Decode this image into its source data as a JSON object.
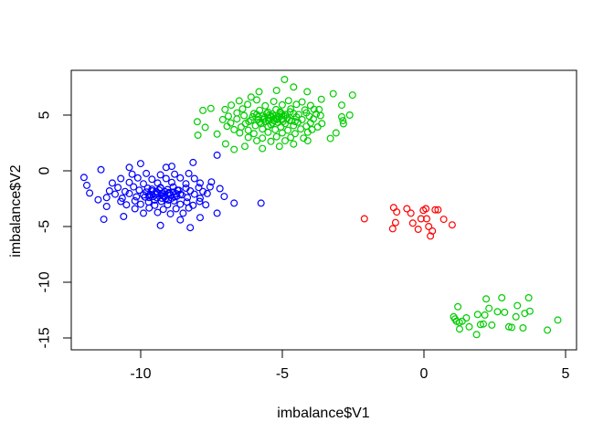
{
  "figure": {
    "background": "#ffffff",
    "title": ""
  },
  "chart_data": {
    "type": "scatter",
    "title": "",
    "xlabel": "imbalance$V1",
    "ylabel": "imbalance$V2",
    "xlim": [
      -12.45,
      5.39
    ],
    "ylim": [
      -16.07,
      9.02
    ],
    "xticks": [
      -10,
      -5,
      0,
      5
    ],
    "yticks": [
      5,
      0,
      -5,
      -10,
      -15
    ],
    "grid": false,
    "legend": "none",
    "axis_color": "#000000",
    "marker": {
      "shape": "open-circle",
      "radius_px": 3.4,
      "stroke_px": 1.2
    },
    "series": [
      {
        "name": "cluster-top-green",
        "color": "#00CD00",
        "points": [
          [
            -4.92,
            8.2
          ],
          [
            -4.6,
            7.52
          ],
          [
            -2.52,
            6.8
          ],
          [
            -3.2,
            6.92
          ],
          [
            -5.82,
            7.1
          ],
          [
            -6.1,
            6.62
          ],
          [
            -5.2,
            7.22
          ],
          [
            -4.12,
            7.1
          ],
          [
            -3.62,
            6.42
          ],
          [
            -2.9,
            5.9
          ],
          [
            -3.88,
            5.52
          ],
          [
            -2.62,
            5.0
          ],
          [
            -2.9,
            4.85
          ],
          [
            -2.86,
            4.5
          ],
          [
            -2.84,
            4.22
          ],
          [
            -3.1,
            3.4
          ],
          [
            -3.3,
            2.9
          ],
          [
            -7.52,
            5.6
          ],
          [
            -7.8,
            5.42
          ],
          [
            -8.0,
            4.4
          ],
          [
            -7.72,
            3.9
          ],
          [
            -7.3,
            3.3
          ],
          [
            -7.0,
            2.42
          ],
          [
            -6.7,
            1.92
          ],
          [
            -6.32,
            2.2
          ],
          [
            -5.7,
            2.0
          ],
          [
            -5.1,
            2.2
          ],
          [
            -4.6,
            2.4
          ],
          [
            -4.1,
            2.7
          ],
          [
            -7.98,
            3.2
          ],
          [
            -6.52,
            6.28
          ],
          [
            -5.9,
            6.36
          ],
          [
            -5.3,
            6.22
          ],
          [
            -4.78,
            6.3
          ],
          [
            -4.3,
            6.18
          ],
          [
            -6.8,
            5.9
          ],
          [
            -6.22,
            5.96
          ],
          [
            -5.6,
            5.84
          ],
          [
            -5.0,
            5.92
          ],
          [
            -4.5,
            5.96
          ],
          [
            -4.0,
            5.86
          ],
          [
            -7.02,
            5.5
          ],
          [
            -6.4,
            5.56
          ],
          [
            -5.8,
            5.44
          ],
          [
            -5.22,
            5.5
          ],
          [
            -4.7,
            5.56
          ],
          [
            -4.2,
            5.46
          ],
          [
            -3.7,
            5.5
          ],
          [
            -6.6,
            5.2
          ],
          [
            -6.0,
            5.14
          ],
          [
            -5.5,
            5.26
          ],
          [
            -5.05,
            5.2
          ],
          [
            -4.6,
            5.14
          ],
          [
            -4.15,
            5.2
          ],
          [
            -3.8,
            5.1
          ],
          [
            -6.9,
            4.9
          ],
          [
            -6.35,
            4.96
          ],
          [
            -5.85,
            4.84
          ],
          [
            -5.4,
            4.9
          ],
          [
            -4.95,
            4.96
          ],
          [
            -4.5,
            4.84
          ],
          [
            -4.05,
            4.9
          ],
          [
            -3.65,
            4.96
          ],
          [
            -7.1,
            4.6
          ],
          [
            -6.6,
            4.66
          ],
          [
            -6.1,
            4.54
          ],
          [
            -5.65,
            4.6
          ],
          [
            -5.2,
            4.66
          ],
          [
            -4.75,
            4.54
          ],
          [
            -4.3,
            4.6
          ],
          [
            -3.9,
            4.66
          ],
          [
            -6.82,
            4.3
          ],
          [
            -6.3,
            4.24
          ],
          [
            -5.8,
            4.36
          ],
          [
            -5.35,
            4.3
          ],
          [
            -4.9,
            4.24
          ],
          [
            -4.45,
            4.36
          ],
          [
            -4.0,
            4.3
          ],
          [
            -3.6,
            4.24
          ],
          [
            -6.95,
            4.0
          ],
          [
            -6.45,
            3.94
          ],
          [
            -5.95,
            4.06
          ],
          [
            -5.5,
            4.0
          ],
          [
            -5.05,
            3.94
          ],
          [
            -4.6,
            4.06
          ],
          [
            -4.15,
            4.0
          ],
          [
            -3.75,
            3.94
          ],
          [
            -6.7,
            3.7
          ],
          [
            -6.2,
            3.64
          ],
          [
            -5.7,
            3.76
          ],
          [
            -5.25,
            3.7
          ],
          [
            -4.8,
            3.64
          ],
          [
            -4.35,
            3.76
          ],
          [
            -3.95,
            3.7
          ],
          [
            -6.5,
            3.4
          ],
          [
            -6.0,
            3.34
          ],
          [
            -5.5,
            3.46
          ],
          [
            -5.0,
            3.4
          ],
          [
            -4.55,
            3.34
          ],
          [
            -4.1,
            3.46
          ],
          [
            -6.2,
            3.0
          ],
          [
            -5.7,
            2.94
          ],
          [
            -5.2,
            3.06
          ],
          [
            -4.7,
            3.0
          ],
          [
            -4.25,
            2.94
          ],
          [
            -5.9,
            2.7
          ],
          [
            -5.4,
            2.64
          ],
          [
            -4.9,
            2.7
          ],
          [
            -5.5,
            4.75
          ],
          [
            -5.3,
            4.5
          ],
          [
            -5.1,
            4.85
          ],
          [
            -5.6,
            4.4
          ],
          [
            -5.0,
            4.6
          ],
          [
            -5.25,
            4.7
          ],
          [
            -5.45,
            5.0
          ],
          [
            -5.15,
            4.35
          ],
          [
            -4.88,
            5.05
          ],
          [
            -5.7,
            4.9
          ],
          [
            -5.35,
            5.1
          ],
          [
            -5.08,
            5.3
          ],
          [
            -5.85,
            4.6
          ],
          [
            -5.62,
            4.78
          ],
          [
            -5.48,
            4.52
          ],
          [
            -5.3,
            4.92
          ],
          [
            -5.18,
            4.6
          ],
          [
            -4.98,
            4.42
          ],
          [
            -4.82,
            4.72
          ],
          [
            -4.68,
            4.48
          ],
          [
            -5.75,
            4.25
          ],
          [
            -5.55,
            5.15
          ],
          [
            -5.4,
            4.15
          ],
          [
            -5.02,
            5.05
          ],
          [
            -4.72,
            5.3
          ],
          [
            -6.05,
            4.85
          ],
          [
            -6.18,
            4.42
          ],
          [
            -4.42,
            5.05
          ],
          [
            -4.55,
            4.42
          ],
          [
            -5.9,
            5.05
          ]
        ]
      },
      {
        "name": "cluster-left-blue",
        "color": "#0000FF",
        "points": [
          [
            -11.4,
            0.1
          ],
          [
            -12.0,
            -0.6
          ],
          [
            -11.9,
            -1.3
          ],
          [
            -11.8,
            -2.0
          ],
          [
            -11.5,
            -2.6
          ],
          [
            -11.2,
            -3.2
          ],
          [
            -11.3,
            -4.35
          ],
          [
            -10.6,
            -4.1
          ],
          [
            -9.3,
            -4.9
          ],
          [
            -8.25,
            -5.1
          ],
          [
            -8.6,
            -4.4
          ],
          [
            -7.9,
            -4.2
          ],
          [
            -7.3,
            -3.8
          ],
          [
            -6.7,
            -2.9
          ],
          [
            -5.75,
            -2.9
          ],
          [
            -7.3,
            1.4
          ],
          [
            -8.15,
            0.75
          ],
          [
            -8.9,
            0.4
          ],
          [
            -10.0,
            0.65
          ],
          [
            -10.4,
            0.3
          ],
          [
            -9.1,
            0.3
          ],
          [
            -7.5,
            -1.0
          ],
          [
            -7.2,
            -1.6
          ],
          [
            -7.05,
            -2.3
          ],
          [
            -10.3,
            -0.3
          ],
          [
            -9.8,
            -0.24
          ],
          [
            -9.3,
            -0.36
          ],
          [
            -8.8,
            -0.3
          ],
          [
            -8.3,
            -0.24
          ],
          [
            -10.7,
            -0.7
          ],
          [
            -10.1,
            -0.64
          ],
          [
            -9.6,
            -0.76
          ],
          [
            -9.1,
            -0.7
          ],
          [
            -8.6,
            -0.64
          ],
          [
            -8.1,
            -0.7
          ],
          [
            -11.0,
            -1.1
          ],
          [
            -10.4,
            -1.04
          ],
          [
            -9.9,
            -1.16
          ],
          [
            -9.4,
            -1.1
          ],
          [
            -8.9,
            -1.04
          ],
          [
            -8.4,
            -1.16
          ],
          [
            -7.9,
            -1.1
          ],
          [
            -10.8,
            -1.5
          ],
          [
            -10.25,
            -1.44
          ],
          [
            -9.75,
            -1.56
          ],
          [
            -9.3,
            -1.5
          ],
          [
            -8.85,
            -1.44
          ],
          [
            -8.4,
            -1.56
          ],
          [
            -7.95,
            -1.5
          ],
          [
            -7.55,
            -1.44
          ],
          [
            -11.1,
            -1.8
          ],
          [
            -10.55,
            -1.86
          ],
          [
            -10.05,
            -1.74
          ],
          [
            -9.6,
            -1.8
          ],
          [
            -9.15,
            -1.86
          ],
          [
            -8.7,
            -1.74
          ],
          [
            -8.25,
            -1.8
          ],
          [
            -7.8,
            -1.86
          ],
          [
            -10.9,
            -2.1
          ],
          [
            -10.4,
            -2.04
          ],
          [
            -9.9,
            -2.16
          ],
          [
            -9.45,
            -2.1
          ],
          [
            -9.0,
            -2.04
          ],
          [
            -8.55,
            -2.16
          ],
          [
            -8.1,
            -2.1
          ],
          [
            -7.65,
            -2.04
          ],
          [
            -11.2,
            -2.4
          ],
          [
            -10.65,
            -2.46
          ],
          [
            -10.15,
            -2.34
          ],
          [
            -9.7,
            -2.4
          ],
          [
            -9.25,
            -2.46
          ],
          [
            -8.8,
            -2.34
          ],
          [
            -8.35,
            -2.4
          ],
          [
            -7.9,
            -2.46
          ],
          [
            -10.7,
            -2.75
          ],
          [
            -10.2,
            -2.7
          ],
          [
            -9.72,
            -2.8
          ],
          [
            -9.27,
            -2.75
          ],
          [
            -8.82,
            -2.7
          ],
          [
            -8.37,
            -2.8
          ],
          [
            -7.92,
            -2.75
          ],
          [
            -10.5,
            -3.05
          ],
          [
            -10.0,
            -3.0
          ],
          [
            -9.5,
            -3.1
          ],
          [
            -9.05,
            -3.05
          ],
          [
            -8.6,
            -3.0
          ],
          [
            -8.15,
            -3.1
          ],
          [
            -7.7,
            -3.05
          ],
          [
            -10.2,
            -3.4
          ],
          [
            -9.7,
            -3.34
          ],
          [
            -9.2,
            -3.46
          ],
          [
            -8.75,
            -3.4
          ],
          [
            -8.3,
            -3.34
          ],
          [
            -9.9,
            -3.8
          ],
          [
            -9.4,
            -3.74
          ],
          [
            -8.95,
            -3.86
          ],
          [
            -8.5,
            -3.8
          ],
          [
            -9.4,
            -2.0
          ],
          [
            -9.2,
            -2.25
          ],
          [
            -9.55,
            -2.3
          ],
          [
            -9.0,
            -1.95
          ],
          [
            -9.35,
            -1.72
          ],
          [
            -9.12,
            -2.5
          ],
          [
            -9.5,
            -2.62
          ],
          [
            -8.95,
            -2.2
          ],
          [
            -9.65,
            -2.12
          ],
          [
            -9.05,
            -1.68
          ],
          [
            -9.3,
            -1.55
          ],
          [
            -8.85,
            -1.92
          ],
          [
            -9.8,
            -1.9
          ],
          [
            -9.7,
            -2.2
          ],
          [
            -9.45,
            -1.85
          ],
          [
            -9.25,
            -2.05
          ],
          [
            -9.6,
            -1.65
          ],
          [
            -9.85,
            -2.35
          ],
          [
            -8.75,
            -2.05
          ],
          [
            -8.65,
            -1.75
          ],
          [
            -8.9,
            -2.45
          ],
          [
            -9.15,
            -2.32
          ],
          [
            -8.72,
            -2.28
          ],
          [
            -9.02,
            -2.62
          ],
          [
            -9.42,
            -2.42
          ],
          [
            -8.6,
            -2.1
          ]
        ]
      },
      {
        "name": "cluster-center-red",
        "color": "#FF0000",
        "points": [
          [
            -2.1,
            -4.3
          ],
          [
            -1.07,
            -3.3
          ],
          [
            -0.96,
            -3.7
          ],
          [
            -0.6,
            -3.4
          ],
          [
            -0.46,
            -3.8
          ],
          [
            -1.1,
            -5.2
          ],
          [
            -1.0,
            -4.65
          ],
          [
            -0.39,
            -4.7
          ],
          [
            -0.2,
            -5.25
          ],
          [
            -0.1,
            -4.3
          ],
          [
            -0.02,
            -3.55
          ],
          [
            0.07,
            -3.4
          ],
          [
            0.1,
            -4.3
          ],
          [
            0.17,
            -5.0
          ],
          [
            0.23,
            -5.85
          ],
          [
            0.3,
            -5.4
          ],
          [
            0.4,
            -3.5
          ],
          [
            0.5,
            -3.5
          ],
          [
            0.7,
            -4.35
          ],
          [
            1.0,
            -4.85
          ]
        ]
      },
      {
        "name": "cluster-bottomright-green",
        "color": "#00CD00",
        "points": [
          [
            1.2,
            -12.2
          ],
          [
            1.05,
            -13.1
          ],
          [
            1.1,
            -13.3
          ],
          [
            1.15,
            -13.5
          ],
          [
            1.25,
            -13.6
          ],
          [
            1.35,
            -13.5
          ],
          [
            1.26,
            -14.2
          ],
          [
            1.5,
            -13.2
          ],
          [
            1.6,
            -14.0
          ],
          [
            1.86,
            -14.7
          ],
          [
            1.9,
            -12.9
          ],
          [
            2.0,
            -13.8
          ],
          [
            2.1,
            -13.75
          ],
          [
            2.2,
            -11.5
          ],
          [
            2.15,
            -12.95
          ],
          [
            2.3,
            -12.35
          ],
          [
            2.4,
            -13.85
          ],
          [
            2.6,
            -12.65
          ],
          [
            2.75,
            -11.4
          ],
          [
            2.85,
            -12.7
          ],
          [
            3.0,
            -14.0
          ],
          [
            3.1,
            -14.05
          ],
          [
            3.25,
            -13.1
          ],
          [
            3.3,
            -12.1
          ],
          [
            3.5,
            -14.1
          ],
          [
            3.56,
            -12.8
          ],
          [
            3.7,
            -11.4
          ],
          [
            3.74,
            -12.6
          ],
          [
            4.36,
            -14.3
          ],
          [
            4.73,
            -13.4
          ]
        ]
      }
    ]
  }
}
